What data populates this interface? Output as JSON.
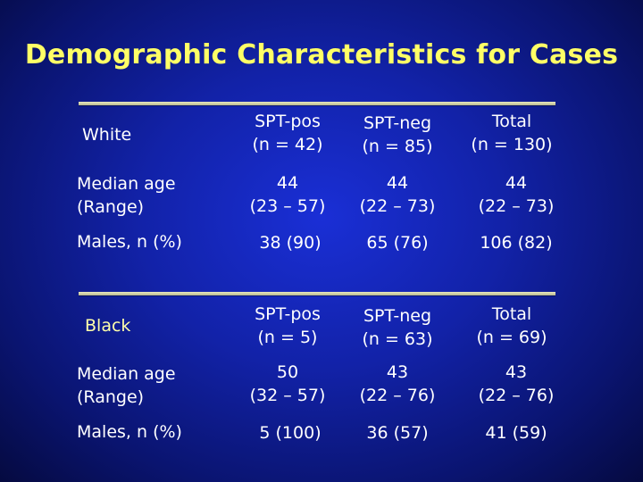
{
  "title": "Demographic Characteristics for Cases",
  "sections": [
    {
      "label": "White",
      "label_color": "#ffffff",
      "headers": [
        {
          "line1": "SPT-pos",
          "line2": "(n = 42)"
        },
        {
          "line1": "SPT-neg",
          "line2": "(n = 85)"
        },
        {
          "line1": "Total",
          "line2": "(n = 130)"
        }
      ],
      "age_label_1": "Median age",
      "age_label_2": "(Range)",
      "age": [
        {
          "median": "44",
          "range": "(23 – 57)"
        },
        {
          "median": "44",
          "range": "(22 – 73)"
        },
        {
          "median": "44",
          "range": "(22 – 73)"
        }
      ],
      "males_label": "Males, n (%)",
      "males": [
        "38 (90)",
        "65 (76)",
        "106 (82)"
      ]
    },
    {
      "label": "Black",
      "label_color": "#ffffaa",
      "headers": [
        {
          "line1": "SPT-pos",
          "line2": "(n = 5)"
        },
        {
          "line1": "SPT-neg",
          "line2": "(n = 63)"
        },
        {
          "line1": "Total",
          "line2": "(n = 69)"
        }
      ],
      "age_label_1": "Median age",
      "age_label_2": "(Range)",
      "age": [
        {
          "median": "50",
          "range": "(32 – 57)"
        },
        {
          "median": "43",
          "range": "(22 – 76)"
        },
        {
          "median": "43",
          "range": "(22 – 76)"
        }
      ],
      "males_label": "Males, n (%)",
      "males": [
        "5 (100)",
        "36 (57)",
        "41 (59)"
      ]
    }
  ]
}
